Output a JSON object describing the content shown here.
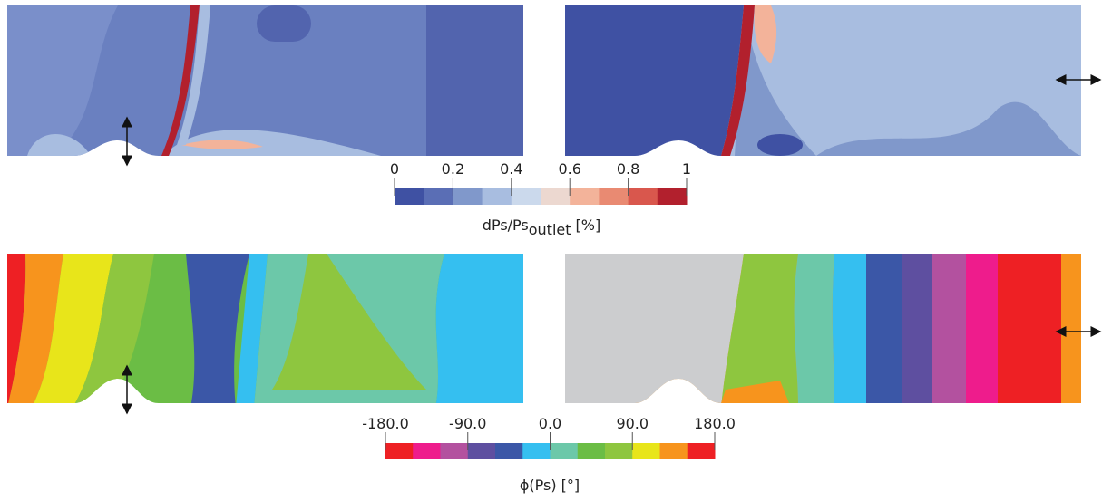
{
  "colorbars": [
    {
      "title": "dPs/Ps",
      "title_subscript": "outlet",
      "title_suffix": "[%]",
      "limits": [
        0,
        1
      ],
      "ticks": [
        0,
        0.2,
        0.4,
        0.6,
        0.8,
        1
      ],
      "colors": [
        "#3f51a3",
        "#5a6eb5",
        "#8098cb",
        "#a8bde0",
        "#cbd9ec",
        "#ecd8d0",
        "#f3b39a",
        "#e98a72",
        "#d9574d",
        "#b2202d"
      ]
    },
    {
      "title": "ϕ(Ps) [°]",
      "limits": [
        -180,
        180
      ],
      "ticks": [
        {
          "value": -180,
          "label": "-180.0"
        },
        {
          "value": -90,
          "label": "-90.0"
        },
        {
          "value": 0,
          "label": "0.0"
        },
        {
          "value": 90,
          "label": "90.0"
        },
        {
          "value": 180,
          "label": "180.0"
        }
      ],
      "colors": [
        "#ee2024",
        "#ee1c8c",
        "#b3519f",
        "#5e4fa0",
        "#3b57a7",
        "#35bff0",
        "#6cc8a9",
        "#6bbd45",
        "#8ec63f",
        "#e8e51a",
        "#f7941d",
        "#ee2024"
      ]
    }
  ]
}
